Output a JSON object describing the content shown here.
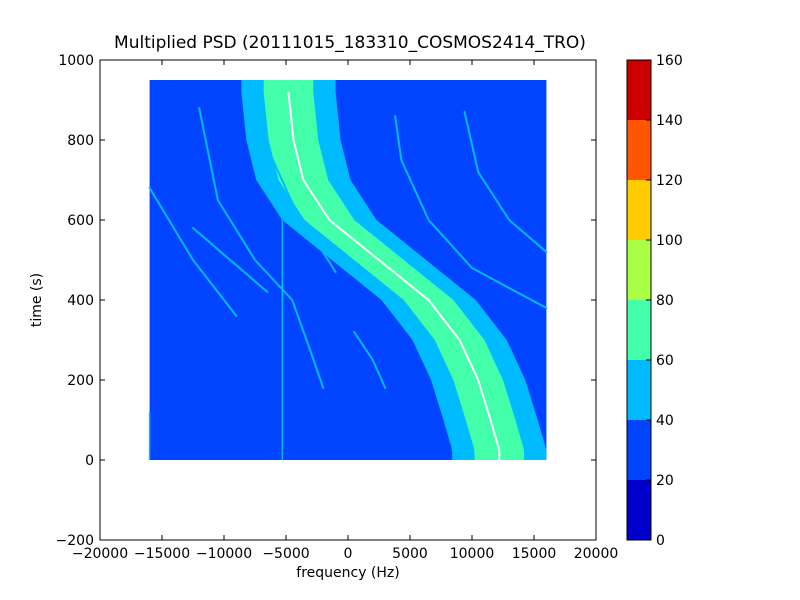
{
  "chart_data": {
    "type": "heatmap",
    "title": "Multiplied PSD (20111015_183310_COSMOS2414_TRO)",
    "xlabel": "frequency (Hz)",
    "ylabel": "time (s)",
    "xlim": [
      -20000,
      20000
    ],
    "ylim": [
      -200,
      1000
    ],
    "x_ticks": [
      -20000,
      -15000,
      -10000,
      -5000,
      0,
      5000,
      10000,
      15000,
      20000
    ],
    "x_tick_labels": [
      "−20000",
      "−15000",
      "−10000",
      "−5000",
      "0",
      "5000",
      "10000",
      "15000",
      "20000"
    ],
    "y_ticks": [
      -200,
      0,
      200,
      400,
      600,
      800,
      1000
    ],
    "y_tick_labels": [
      "−200",
      "0",
      "200",
      "400",
      "600",
      "800",
      "1000"
    ],
    "data_extent": {
      "freq_min": -16000,
      "freq_max": 16000,
      "time_min": 0,
      "time_max": 950
    },
    "background_level": 25,
    "colorbar": {
      "levels": [
        0,
        20,
        40,
        60,
        80,
        100,
        120,
        140,
        160
      ],
      "labels": [
        "0",
        "20",
        "40",
        "60",
        "80",
        "100",
        "120",
        "140",
        "160"
      ],
      "colors": [
        "#0000cc",
        "#0044ff",
        "#00bbff",
        "#44ffaa",
        "#aaff44",
        "#ffcc00",
        "#ff5500",
        "#cc0000"
      ]
    },
    "main_trace": {
      "description_points": [
        {
          "time": 920,
          "freq": -4800
        },
        {
          "time": 800,
          "freq": -4400
        },
        {
          "time": 700,
          "freq": -3600
        },
        {
          "time": 600,
          "freq": -1500
        },
        {
          "time": 500,
          "freq": 2500
        },
        {
          "time": 400,
          "freq": 6500
        },
        {
          "time": 300,
          "freq": 9000
        },
        {
          "time": 200,
          "freq": 10500
        },
        {
          "time": 100,
          "freq": 11500
        },
        {
          "time": 25,
          "freq": 12200
        }
      ]
    },
    "bands": [
      {
        "level_center": 75,
        "level_half_width": 2000
      },
      {
        "level_center": 55,
        "level_half_width": 3300
      },
      {
        "level_center": 45,
        "level_half_width": 3800
      }
    ],
    "secondary_traces": [
      {
        "level": 55,
        "points": [
          {
            "time": 680,
            "freq": -16000
          },
          {
            "time": 500,
            "freq": -12500
          },
          {
            "time": 360,
            "freq": -9000
          }
        ]
      },
      {
        "level": 50,
        "points": [
          {
            "time": 880,
            "freq": -12000
          },
          {
            "time": 650,
            "freq": -10500
          },
          {
            "time": 500,
            "freq": -7500
          },
          {
            "time": 400,
            "freq": -4500
          },
          {
            "time": 270,
            "freq": -3000
          },
          {
            "time": 180,
            "freq": -2000
          }
        ]
      },
      {
        "level": 50,
        "points": [
          {
            "time": 760,
            "freq": -6200
          },
          {
            "time": 630,
            "freq": -4300
          },
          {
            "time": 470,
            "freq": -1000
          }
        ]
      },
      {
        "level": 50,
        "points": [
          {
            "time": 580,
            "freq": -12500
          },
          {
            "time": 500,
            "freq": -9500
          },
          {
            "time": 420,
            "freq": -6500
          }
        ]
      },
      {
        "level": 50,
        "points": [
          {
            "time": 860,
            "freq": 3800
          },
          {
            "time": 750,
            "freq": 4300
          },
          {
            "time": 600,
            "freq": 6500
          },
          {
            "time": 480,
            "freq": 10000
          },
          {
            "time": 380,
            "freq": 16000
          }
        ]
      },
      {
        "level": 50,
        "points": [
          {
            "time": 870,
            "freq": 9400
          },
          {
            "time": 720,
            "freq": 10500
          },
          {
            "time": 600,
            "freq": 13000
          },
          {
            "time": 520,
            "freq": 16000
          }
        ]
      },
      {
        "level": 50,
        "points": [
          {
            "time": 320,
            "freq": 500
          },
          {
            "time": 250,
            "freq": 2000
          },
          {
            "time": 180,
            "freq": 3000
          }
        ]
      }
    ],
    "vertical_lines": [
      {
        "freq": -5300,
        "time_min": 0,
        "time_max": 650,
        "level": 45
      },
      {
        "freq": -16000,
        "time_min": 0,
        "time_max": 120,
        "level": 45
      }
    ]
  }
}
